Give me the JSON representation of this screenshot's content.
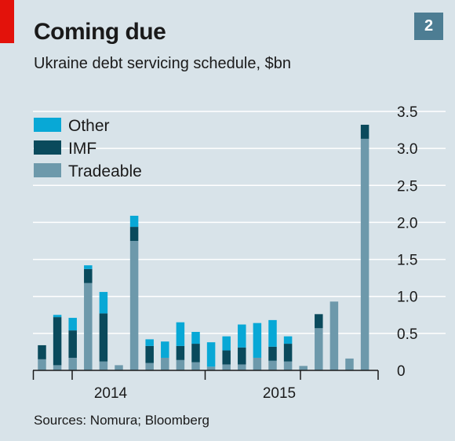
{
  "header": {
    "title": "Coming due",
    "subtitle": "Ukraine debt servicing schedule, $bn",
    "badge": "2"
  },
  "footer": {
    "source": "Sources: Nomura; Bloomberg"
  },
  "colors": {
    "other": "#08a8d6",
    "imf": "#0a4a5c",
    "tradeable": "#6d99ab",
    "background": "#d8e3e9",
    "gridline": "#ffffff",
    "accent_red": "#e3120b"
  },
  "chart_data": {
    "type": "bar",
    "stacked": true,
    "title": "Coming due",
    "subtitle": "Ukraine debt servicing schedule, $bn",
    "x_tick_labels": [
      "2014",
      "2015"
    ],
    "y_tick_labels": [
      "0",
      "0.5",
      "1.0",
      "1.5",
      "2.0",
      "2.5",
      "3.0",
      "3.5"
    ],
    "ylim": [
      0,
      3.5
    ],
    "y_axis_position": "right",
    "grid": true,
    "legend_position": "top-left",
    "series": [
      {
        "name": "Tradeable",
        "color": "#6d99ab",
        "values": [
          0.15,
          0.07,
          0.17,
          1.18,
          0.12,
          0.07,
          1.75,
          0.1,
          0.17,
          0.14,
          0.11,
          0.05,
          0.08,
          0.08,
          0.17,
          0.13,
          0.12,
          0.06,
          0.57,
          0.93,
          0.16,
          3.13
        ]
      },
      {
        "name": "IMF",
        "color": "#0a4a5c",
        "values": [
          0.19,
          0.65,
          0.37,
          0.19,
          0.65,
          0,
          0.19,
          0.23,
          0,
          0.19,
          0.25,
          0,
          0.19,
          0.23,
          0,
          0.19,
          0.24,
          0,
          0.19,
          0,
          0,
          0.19
        ]
      },
      {
        "name": "Other",
        "color": "#08a8d6",
        "values": [
          0,
          0.03,
          0.17,
          0.05,
          0.29,
          0,
          0.15,
          0.09,
          0.22,
          0.32,
          0.16,
          0.33,
          0.19,
          0.31,
          0.47,
          0.36,
          0.1,
          0,
          0,
          0,
          0,
          0
        ]
      }
    ]
  }
}
